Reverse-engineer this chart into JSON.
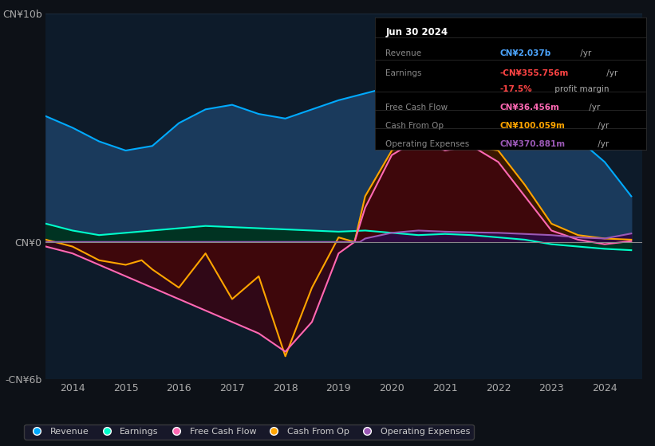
{
  "background_color": "#0d1117",
  "chart_bg": "#0d1b2a",
  "title_box": {
    "date": "Jun 30 2024",
    "rows": [
      {
        "label": "Revenue",
        "value": "CN¥2.037b",
        "value_color": "#4da6ff",
        "suffix": " /yr",
        "suffix_color": "#aaaaaa"
      },
      {
        "label": "Earnings",
        "value": "-CN¥355.756m",
        "value_color": "#ff4444",
        "suffix": " /yr",
        "suffix_color": "#aaaaaa"
      },
      {
        "label": "",
        "value": "-17.5%",
        "value_color": "#ff4444",
        "suffix": " profit margin",
        "suffix_color": "#aaaaaa"
      },
      {
        "label": "Free Cash Flow",
        "value": "CN¥36.456m",
        "value_color": "#ff69b4",
        "suffix": " /yr",
        "suffix_color": "#aaaaaa"
      },
      {
        "label": "Cash From Op",
        "value": "CN¥100.059m",
        "value_color": "#ffa500",
        "suffix": " /yr",
        "suffix_color": "#aaaaaa"
      },
      {
        "label": "Operating Expenses",
        "value": "CN¥370.881m",
        "value_color": "#9b59b6",
        "suffix": " /yr",
        "suffix_color": "#aaaaaa"
      }
    ]
  },
  "ylim": [
    -6000000000,
    10000000000
  ],
  "xlim": [
    2013.5,
    2024.7
  ],
  "yticks": [
    -6000000000,
    0,
    10000000000
  ],
  "ytick_labels": [
    "-CN¥6b",
    "CN¥0",
    "CN¥10b"
  ],
  "xticks": [
    2014,
    2015,
    2016,
    2017,
    2018,
    2019,
    2020,
    2021,
    2022,
    2023,
    2024
  ],
  "series": {
    "revenue": {
      "color": "#00aaff",
      "fill_color": "#1a3a5c",
      "x": [
        2013.5,
        2014.0,
        2014.5,
        2015.0,
        2015.5,
        2016.0,
        2016.5,
        2017.0,
        2017.5,
        2018.0,
        2018.5,
        2019.0,
        2019.5,
        2020.0,
        2020.5,
        2021.0,
        2021.5,
        2022.0,
        2022.3,
        2022.5,
        2023.0,
        2023.5,
        2024.0,
        2024.5
      ],
      "y": [
        5500000000,
        5000000000,
        4400000000,
        4000000000,
        4200000000,
        5200000000,
        5800000000,
        6000000000,
        5600000000,
        5400000000,
        5800000000,
        6200000000,
        6500000000,
        6800000000,
        7200000000,
        6200000000,
        6800000000,
        9500000000,
        9600000000,
        8000000000,
        5500000000,
        4500000000,
        3500000000,
        2000000000
      ]
    },
    "earnings": {
      "color": "#00ffcc",
      "fill_color": "#003322",
      "x": [
        2013.5,
        2014.0,
        2014.5,
        2015.0,
        2015.5,
        2016.0,
        2016.5,
        2017.0,
        2017.5,
        2018.0,
        2018.5,
        2019.0,
        2019.5,
        2020.0,
        2020.5,
        2021.0,
        2021.5,
        2022.0,
        2022.5,
        2023.0,
        2023.5,
        2024.0,
        2024.5
      ],
      "y": [
        800000000,
        500000000,
        300000000,
        400000000,
        500000000,
        600000000,
        700000000,
        650000000,
        600000000,
        550000000,
        500000000,
        450000000,
        500000000,
        400000000,
        300000000,
        350000000,
        300000000,
        200000000,
        100000000,
        -100000000,
        -200000000,
        -300000000,
        -360000000
      ]
    },
    "free_cash_flow": {
      "color": "#ff69b4",
      "fill_color": "#400010",
      "x": [
        2013.5,
        2014.0,
        2014.5,
        2015.0,
        2015.5,
        2016.0,
        2016.5,
        2017.0,
        2017.5,
        2018.0,
        2018.5,
        2019.0,
        2019.3,
        2019.5,
        2020.0,
        2020.5,
        2021.0,
        2021.5,
        2022.0,
        2022.5,
        2023.0,
        2023.5,
        2024.0,
        2024.5
      ],
      "y": [
        -200000000,
        -500000000,
        -1000000000,
        -1500000000,
        -2000000000,
        -2500000000,
        -3000000000,
        -3500000000,
        -4000000000,
        -4800000000,
        -3500000000,
        -500000000,
        0,
        1500000000,
        3800000000,
        4500000000,
        4000000000,
        4200000000,
        3500000000,
        2000000000,
        500000000,
        100000000,
        -100000000,
        36000000
      ]
    },
    "cash_from_op": {
      "color": "#ffa500",
      "fill_color": "#3a1800",
      "x": [
        2013.5,
        2014.0,
        2014.5,
        2015.0,
        2015.3,
        2015.5,
        2016.0,
        2016.5,
        2017.0,
        2017.5,
        2018.0,
        2018.5,
        2019.0,
        2019.3,
        2019.5,
        2020.0,
        2020.5,
        2021.0,
        2021.5,
        2022.0,
        2022.5,
        2023.0,
        2023.5,
        2024.0,
        2024.5
      ],
      "y": [
        100000000,
        -200000000,
        -800000000,
        -1000000000,
        -800000000,
        -1200000000,
        -2000000000,
        -500000000,
        -2500000000,
        -1500000000,
        -5000000000,
        -2000000000,
        200000000,
        0,
        2000000000,
        4000000000,
        4800000000,
        4500000000,
        4200000000,
        4000000000,
        2500000000,
        800000000,
        300000000,
        150000000,
        100000000
      ]
    },
    "operating_expenses": {
      "color": "#9b59b6",
      "fill_color": "#2d0a40",
      "x": [
        2013.5,
        2014.0,
        2014.5,
        2015.0,
        2015.5,
        2016.0,
        2016.5,
        2017.0,
        2017.5,
        2018.0,
        2018.5,
        2019.0,
        2019.4,
        2019.5,
        2020.0,
        2020.5,
        2021.0,
        2021.5,
        2022.0,
        2022.5,
        2023.0,
        2023.5,
        2024.0,
        2024.5
      ],
      "y": [
        0,
        0,
        0,
        0,
        0,
        0,
        0,
        0,
        0,
        0,
        0,
        0,
        0,
        150000000,
        400000000,
        500000000,
        450000000,
        420000000,
        400000000,
        350000000,
        300000000,
        200000000,
        150000000,
        370000000
      ]
    }
  },
  "legend": [
    {
      "label": "Revenue",
      "color": "#00aaff"
    },
    {
      "label": "Earnings",
      "color": "#00ffcc"
    },
    {
      "label": "Free Cash Flow",
      "color": "#ff69b4"
    },
    {
      "label": "Cash From Op",
      "color": "#ffa500"
    },
    {
      "label": "Operating Expenses",
      "color": "#9b59b6"
    }
  ]
}
